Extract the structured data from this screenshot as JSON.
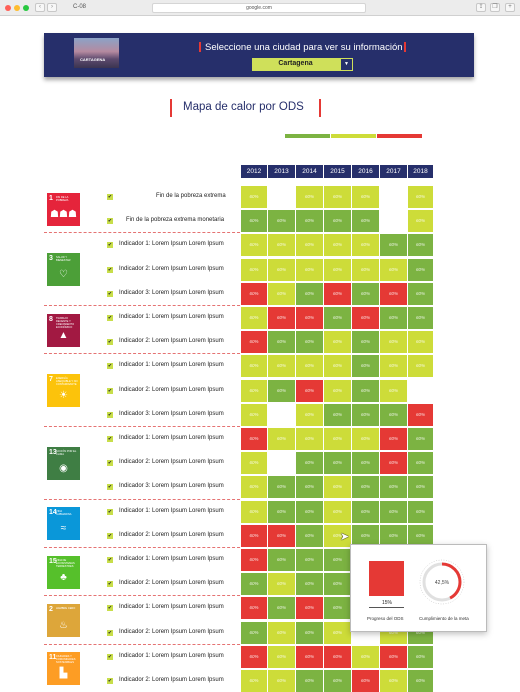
{
  "browser": {
    "tab_title": "C-08",
    "url": "google.com"
  },
  "header": {
    "thumbnail_label": "CARTAGENA",
    "title": "Seleccione una ciudad para ver su información",
    "city_selected": "Cartagena"
  },
  "map": {
    "title": "Mapa de calor por ODS",
    "legend_colors": [
      "#7cb342",
      "#cddc39",
      "#e53935"
    ]
  },
  "colors": {
    "G": "#7cb342",
    "Y": "#cddc39",
    "R": "#e53935",
    "W": "#ffffff",
    "header": "#262f6b"
  },
  "years": [
    "2012",
    "2013",
    "2014",
    "2015",
    "2016",
    "2017",
    "2018"
  ],
  "goals": [
    {
      "num": "1",
      "text": "FIN DE LA POBREZA",
      "icon": "family-icon",
      "glyph": "☗☗☗",
      "color": "#e5243b"
    },
    {
      "num": "3",
      "text": "SALUD Y BIENESTAR",
      "icon": "heartbeat-icon",
      "glyph": "♡",
      "color": "#4c9f38"
    },
    {
      "num": "8",
      "text": "TRABAJO DECENTE Y CRECIMIENTO ECONÓMICO",
      "icon": "growth-chart-icon",
      "glyph": "▲",
      "color": "#a21942"
    },
    {
      "num": "7",
      "text": "ENERGÍA ASEQUIBLE Y NO CONTAMINANTE",
      "icon": "sun-icon",
      "glyph": "☀",
      "color": "#fcc30b"
    },
    {
      "num": "13",
      "text": "ACCIÓN POR EL CLIMA",
      "icon": "eye-globe-icon",
      "glyph": "◉",
      "color": "#3f7e44"
    },
    {
      "num": "14",
      "text": "VIDA SUBMARINA",
      "icon": "fish-icon",
      "glyph": "≈",
      "color": "#0a97d9"
    },
    {
      "num": "15",
      "text": "VIDA DE ECOSISTEMAS TERRESTRES",
      "icon": "tree-icon",
      "glyph": "♣",
      "color": "#56c02b"
    },
    {
      "num": "2",
      "text": "HAMBRE CERO",
      "icon": "bowl-icon",
      "glyph": "♨",
      "color": "#dda63a"
    },
    {
      "num": "11",
      "text": "CIUDADES Y COMUNIDADES SOSTENIBLES",
      "icon": "city-icon",
      "glyph": "▙",
      "color": "#fd9d24"
    }
  ],
  "rows": [
    {
      "label": "Fin de la pobreza extrema",
      "cells": "YWYYYWY"
    },
    {
      "label": "Fin de la pobreza extrema monetaria",
      "cells": "GGGGGWY"
    },
    {
      "label": "Indicador 1: Lorem Ipsum Lorem Ipsum",
      "cells": "YYYYYGG"
    },
    {
      "label": "Indicador 2: Lorem Ipsum Lorem Ipsum",
      "cells": "YYYYYYG"
    },
    {
      "label": "Indicador 3: Lorem Ipsum Lorem Ipsum",
      "cells": "RYGRGRG"
    },
    {
      "label": "Indicador 1: Lorem Ipsum Lorem Ipsum",
      "cells": "YRRGRGG"
    },
    {
      "label": "Indicador 2: Lorem Ipsum Lorem Ipsum",
      "cells": "RGGYGYY"
    },
    {
      "label": "Indicador 1: Lorem Ipsum Lorem Ipsum",
      "cells": "YYYYGYY"
    },
    {
      "label": "Indicador 2: Lorem Ipsum Lorem Ipsum",
      "cells": "YGRYGYW"
    },
    {
      "label": "Indicador 3: Lorem Ipsum Lorem Ipsum",
      "cells": "YWYGGGR"
    },
    {
      "label": "Indicador 1: Lorem Ipsum Lorem Ipsum",
      "cells": "RYYYYRG"
    },
    {
      "label": "Indicador 2: Lorem Ipsum Lorem Ipsum",
      "cells": "YWGGGRG"
    },
    {
      "label": "Indicador 3: Lorem Ipsum Lorem Ipsum",
      "cells": "YGGYGGG"
    },
    {
      "label": "Indicador 1: Lorem Ipsum Lorem Ipsum",
      "cells": "YGGYGGG"
    },
    {
      "label": "Indicador 2: Lorem Ipsum Lorem Ipsum",
      "cells": "RRGYGGG"
    },
    {
      "label": "Indicador 1: Lorem Ipsum Lorem Ipsum",
      "cells": "RGGGYYG"
    },
    {
      "label": "Indicador 2: Lorem Ipsum Lorem Ipsum",
      "cells": "GYGGYGG"
    },
    {
      "label": "Indicador 1: Lorem Ipsum Lorem Ipsum",
      "cells": "RGRGWGG"
    },
    {
      "label": "Indicador 2: Lorem Ipsum Lorem Ipsum",
      "cells": "GYGYWYG"
    },
    {
      "label": "Indicador 1: Lorem Ipsum Lorem Ipsum",
      "cells": "RYRRYRG"
    },
    {
      "label": "Indicador 2: Lorem Ipsum Lorem Ipsum",
      "cells": "YYGGRYG"
    }
  ],
  "cell_text": "60%",
  "popup": {
    "square_value": "15%",
    "ring_value": "42,5%",
    "ring_fraction": 0.425,
    "label_left": "Progreso del ODS",
    "label_right": "Cumplimiento de la meta"
  }
}
